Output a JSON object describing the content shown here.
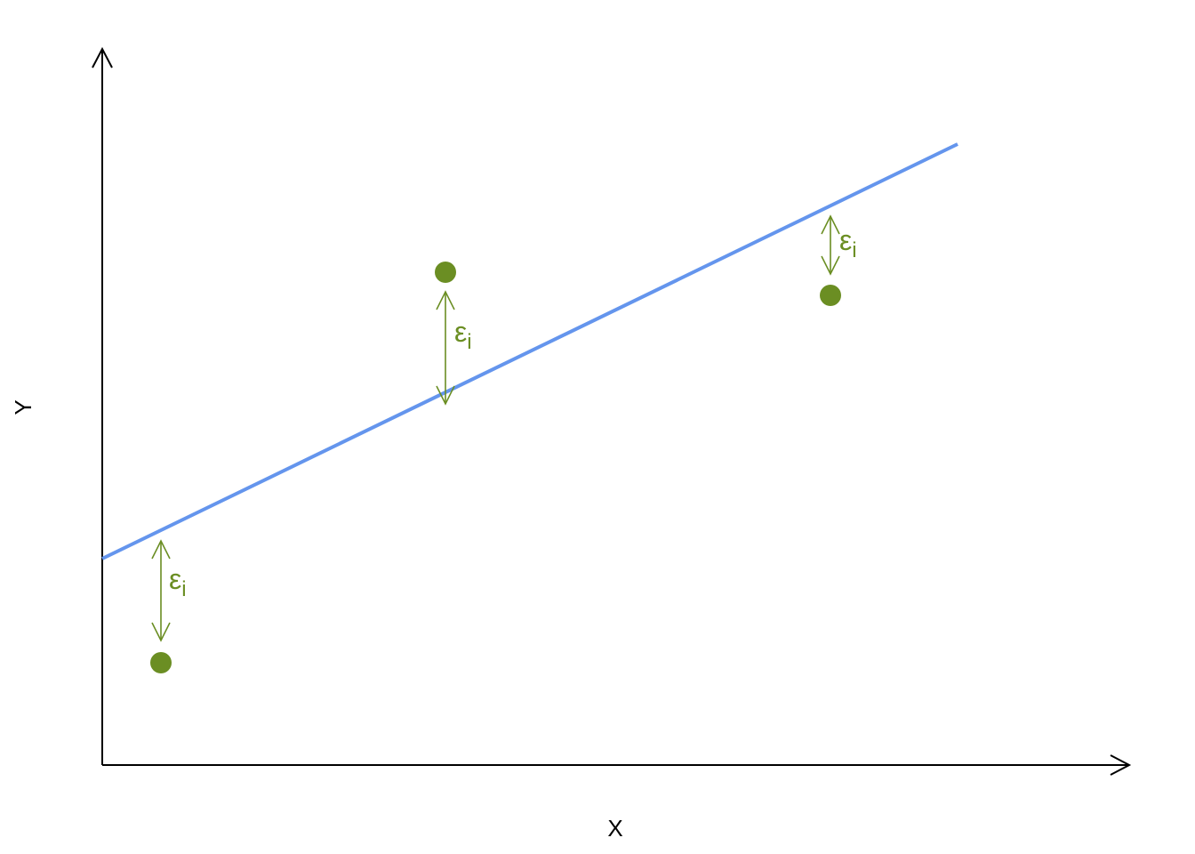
{
  "axes": {
    "x_label": "X",
    "y_label": "Y"
  },
  "residual_labels": [
    {
      "symbol": "ε",
      "subscript": "i"
    },
    {
      "symbol": "ε",
      "subscript": "i"
    },
    {
      "symbol": "ε",
      "subscript": "i"
    }
  ]
}
